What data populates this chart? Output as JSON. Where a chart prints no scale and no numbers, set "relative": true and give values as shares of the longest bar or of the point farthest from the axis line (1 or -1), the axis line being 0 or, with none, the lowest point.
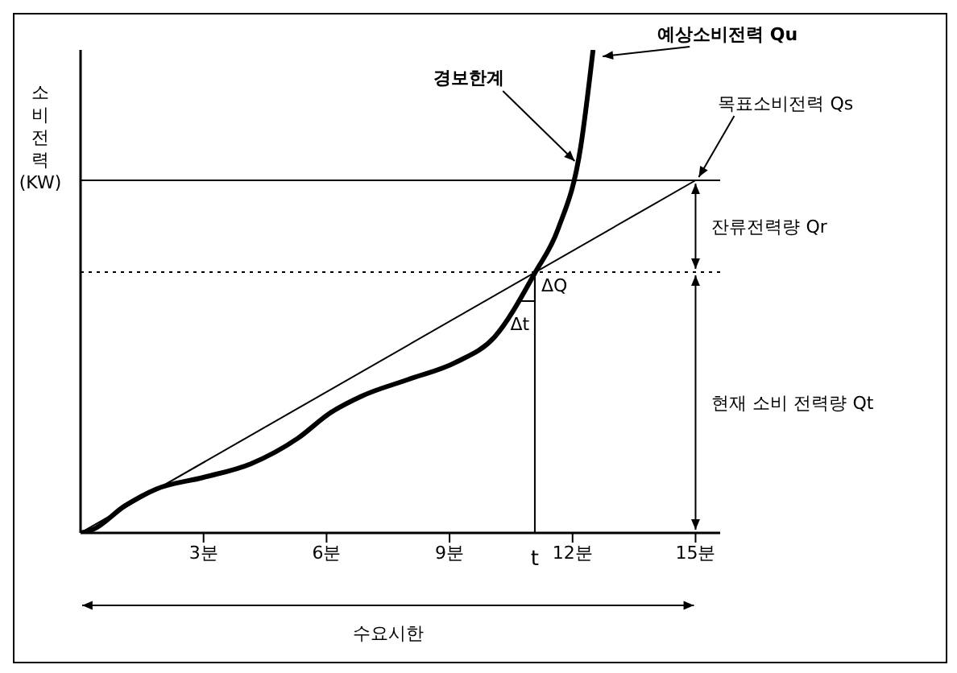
{
  "chart_data": {
    "type": "line",
    "relative": true,
    "ylabel": "소비전력 (KW)",
    "xlim": [
      0,
      15.6
    ],
    "xticks": [
      {
        "value": 3,
        "label": "3분"
      },
      {
        "value": 6,
        "label": "6분"
      },
      {
        "value": 9,
        "label": "9분"
      },
      {
        "value": 12,
        "label": "12분"
      },
      {
        "value": 15,
        "label": "15분"
      }
    ],
    "series": [
      {
        "name": "예상소비전력 Qu",
        "color": "#000000",
        "x": [
          0,
          0.3,
          1.08,
          1.85,
          3,
          4.15,
          5.3,
          6.08,
          6.85,
          8,
          9.15,
          10.1,
          11.08,
          11.65,
          12.2,
          12.5
        ],
        "values": [
          0,
          0.007,
          0.056,
          0.091,
          0.115,
          0.143,
          0.196,
          0.248,
          0.283,
          0.318,
          0.353,
          0.406,
          0.538,
          0.63,
          0.8,
          1
        ]
      },
      {
        "color": "#000000",
        "x": [
          0,
          15
        ],
        "values": [
          0,
          0.73
        ]
      }
    ],
    "ref_lines": [
      {
        "axis": "y",
        "value": 0.73,
        "label": "목표소비전력 Qs",
        "line_style": "solid"
      },
      {
        "axis": "y",
        "value": 0.54,
        "line_style": "dotted"
      },
      {
        "axis": "x",
        "value": 11.08,
        "label": "t",
        "line_style": "solid"
      }
    ],
    "annotations": [
      "경보한계",
      "잔류전력량 Qr",
      "현재 소비 전력량 Qt",
      "ΔQ",
      "Δt",
      "수요시한"
    ],
    "marker": "none"
  }
}
